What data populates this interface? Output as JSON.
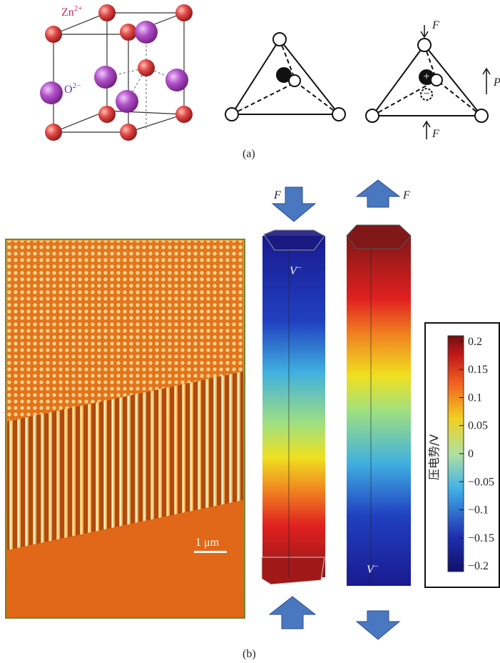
{
  "panel_a": {
    "ions": [
      {
        "label": "Zn",
        "charge": "2+"
      },
      {
        "label": "O",
        "charge": "2−"
      }
    ],
    "force_label": "F",
    "polarization_label": "P",
    "charge_plus": "+",
    "charge_minus": "−",
    "caption": "(a)"
  },
  "panel_b": {
    "scale_bar": "1 μm",
    "potential_label": "V",
    "potential_sign": "−",
    "force_label": "F",
    "caption": "(b)",
    "colorbar": {
      "label": "压电势/V",
      "lim": [
        -0.21,
        0.21
      ],
      "ticks": [
        0.2,
        0.15,
        0.1,
        0.05,
        0,
        {
          "value": -0.05,
          "label": "−0.05"
        },
        {
          "value": -0.1,
          "label": "−0.1"
        },
        {
          "value": -0.15,
          "label": "−0.15"
        },
        {
          "value": -0.2,
          "label": "−0.2"
        }
      ]
    }
  }
}
